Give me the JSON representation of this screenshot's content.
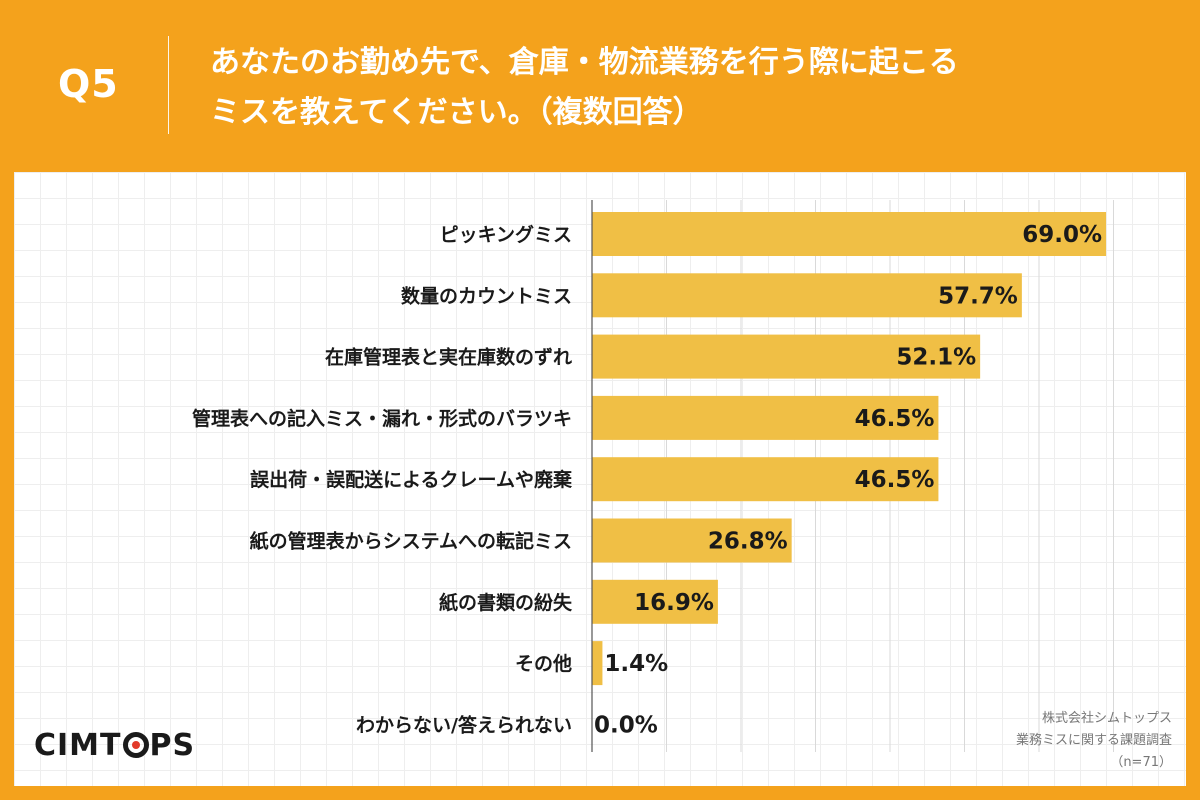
{
  "header": {
    "question_number": "Q5",
    "question_line1": "あなたのお勤め先で、倉庫・物流業務を行う際に起こる",
    "question_line2": "ミスを教えてください。（複数回答）"
  },
  "logo": {
    "text_before": "CIMT",
    "text_after": "PS"
  },
  "source": {
    "line1": "株式会社シムトップス",
    "line2": "業務ミスに関する課題調査",
    "line3": "（n=71）"
  },
  "colors": {
    "background": "#f4a21c",
    "bar": "#f0bf45",
    "logo_dot": "#e23a2a"
  },
  "chart_data": {
    "type": "bar",
    "orientation": "horizontal",
    "categories": [
      "ピッキングミス",
      "数量のカウントミス",
      "在庫管理表と実在庫数のずれ",
      "管理表への記入ミス・漏れ・形式のバラツキ",
      "誤出荷・誤配送によるクレームや廃棄",
      "紙の管理表からシステムへの転記ミス",
      "紙の書類の紛失",
      "その他",
      "わからない/答えられない"
    ],
    "values": [
      69.0,
      57.7,
      52.1,
      46.5,
      46.5,
      26.8,
      16.9,
      1.4,
      0.0
    ],
    "value_labels": [
      "69.0%",
      "57.7%",
      "52.1%",
      "46.5%",
      "46.5%",
      "26.8%",
      "16.9%",
      "1.4%",
      "0.0%"
    ],
    "xlim": [
      0,
      70
    ],
    "grid": true,
    "title": "",
    "xlabel": "",
    "ylabel": ""
  }
}
